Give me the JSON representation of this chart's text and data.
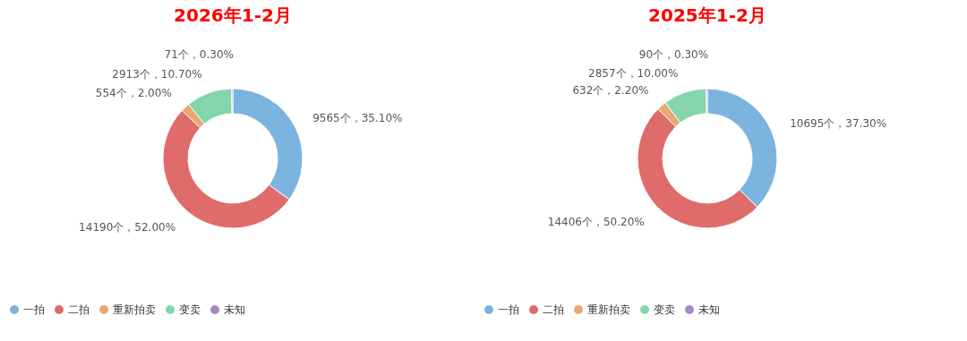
{
  "chart_data": [
    {
      "type": "donut",
      "title": "2026年1-2月",
      "categories": [
        "一拍",
        "二拍",
        "重新拍卖",
        "变卖",
        "未知"
      ],
      "values": [
        9565,
        14190,
        554,
        2913,
        71
      ],
      "value_labels": [
        "9565个，35.10%",
        "14190个，52.00%",
        "554个，2.00%",
        "2913个，10.70%",
        "71个，0.30%"
      ],
      "colors": [
        "#7cb4e0",
        "#e06b6b",
        "#e8a870",
        "#84d6aa",
        "#a98ac4"
      ],
      "legend": "bottom"
    },
    {
      "type": "donut",
      "title": "2025年1-2月",
      "categories": [
        "一拍",
        "二拍",
        "重新拍卖",
        "变卖",
        "未知"
      ],
      "values": [
        10695,
        14406,
        632,
        2857,
        90
      ],
      "value_labels": [
        "10695个，37.30%",
        "14406个，50.20%",
        "632个，2.20%",
        "2857个，10.00%",
        "90个，0.30%"
      ],
      "colors": [
        "#7cb4e0",
        "#e06b6b",
        "#e8a870",
        "#84d6aa",
        "#a98ac4"
      ],
      "legend": "bottom"
    }
  ]
}
